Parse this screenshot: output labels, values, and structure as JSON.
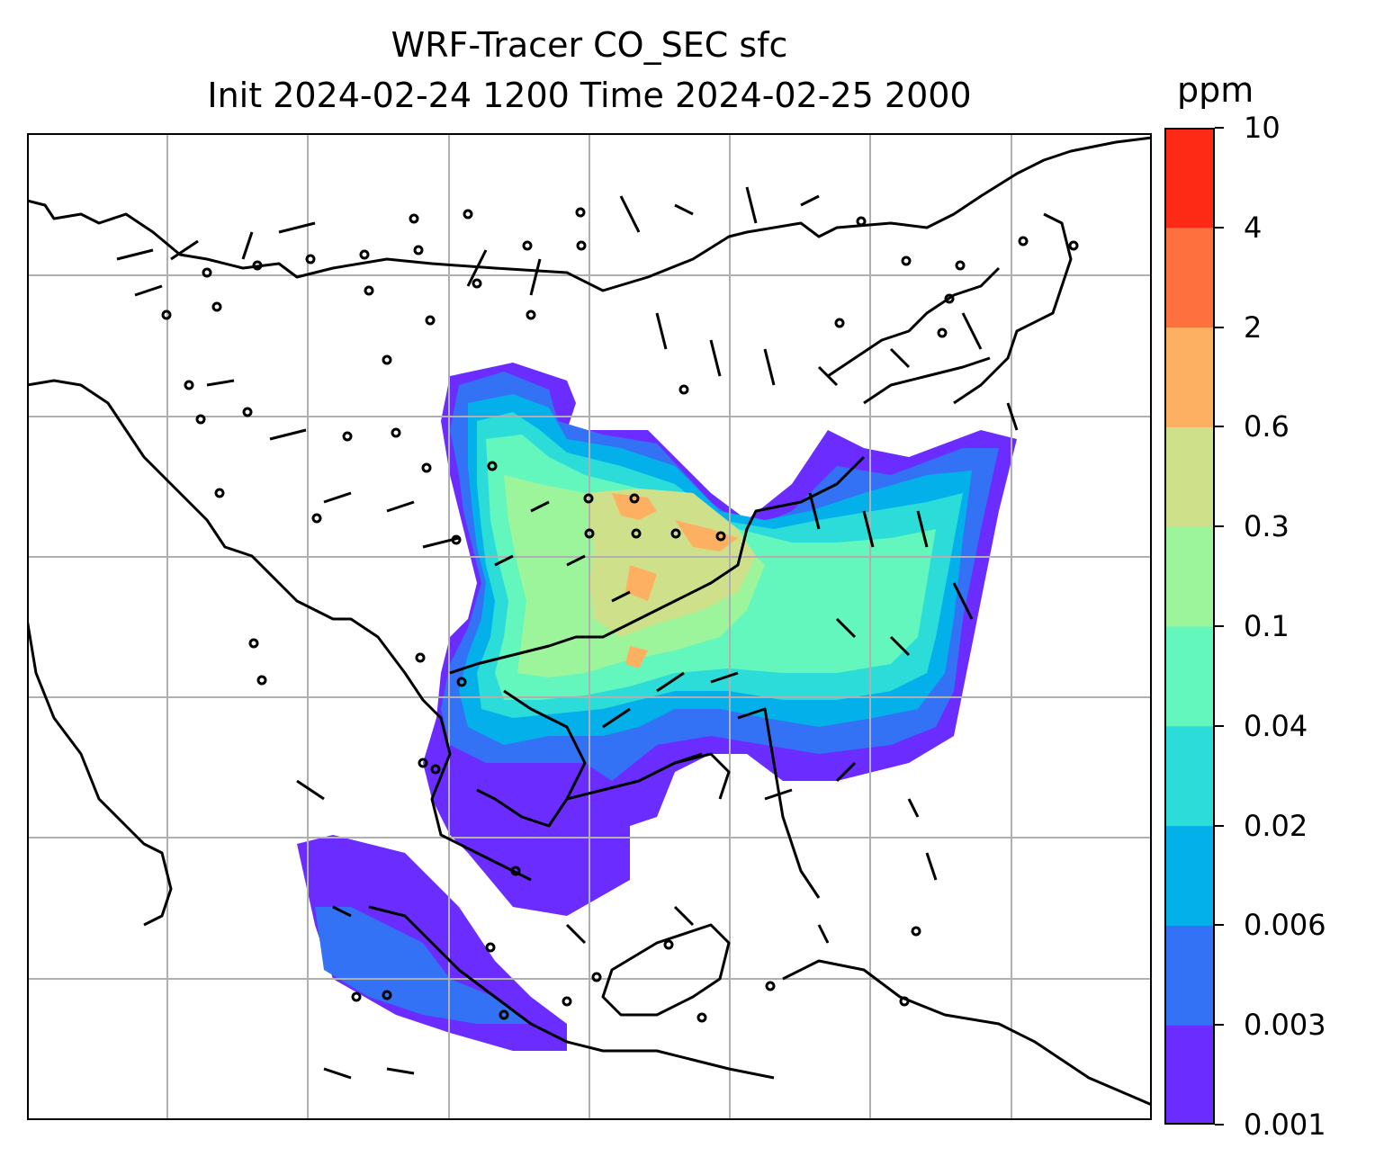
{
  "title": {
    "line1": "WRF-Tracer CO_SEC sfc",
    "line2": "Init 2024-02-24 1200 Time 2024-02-25 2000"
  },
  "colorbar": {
    "units": "ppm",
    "levels": [
      "0.001",
      "0.003",
      "0.006",
      "0.02",
      "0.04",
      "0.1",
      "0.3",
      "0.6",
      "2",
      "4",
      "10"
    ],
    "colors": [
      "#6a2cff",
      "#3472f5",
      "#04b0ea",
      "#2bdcd9",
      "#63f7bd",
      "#9cf59a",
      "#cfe08a",
      "#feb062",
      "#fe713e",
      "#ff2a16"
    ]
  },
  "map": {
    "field": "CO_SEC",
    "level": "sfc",
    "gridlines": true,
    "coastlines": true,
    "wind_barbs": true
  }
}
